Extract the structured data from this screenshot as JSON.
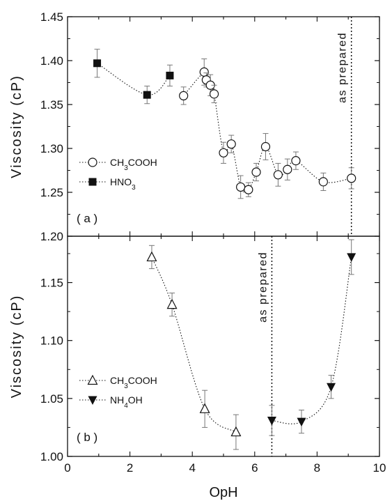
{
  "chart_data": [
    {
      "type": "scatter",
      "panel_label": "( a )",
      "ylabel": "Viscosity (cP)",
      "xlim": [
        0,
        10
      ],
      "ylim": [
        1.2,
        1.45
      ],
      "yticks": [
        "1.20",
        "1.25",
        "1.30",
        "1.35",
        "1.40",
        "1.45"
      ],
      "annotation": {
        "text": "as prepared",
        "x": 9.1
      },
      "legend_position": "middle-left",
      "series": [
        {
          "name": "CH3COOH",
          "legend_html": "CH<tspan baseline-shift=\"sub\" font-size=\"10\">3</tspan>COOH",
          "marker": "circle-open",
          "x": [
            3.72,
            4.38,
            4.45,
            4.58,
            4.7,
            5.0,
            5.25,
            5.55,
            5.8,
            6.05,
            6.35,
            6.75,
            7.05,
            7.32,
            8.2,
            9.1
          ],
          "y": [
            1.36,
            1.387,
            1.378,
            1.372,
            1.362,
            1.295,
            1.305,
            1.256,
            1.253,
            1.273,
            1.302,
            1.27,
            1.276,
            1.286,
            1.262,
            1.266
          ],
          "err": [
            0.01,
            0.015,
            0.008,
            0.012,
            0.01,
            0.012,
            0.01,
            0.013,
            0.008,
            0.01,
            0.015,
            0.013,
            0.012,
            0.01,
            0.01,
            0.012
          ]
        },
        {
          "name": "HNO3",
          "legend_html": "HNO<tspan baseline-shift=\"sub\" font-size=\"10\">3</tspan>",
          "marker": "square-filled",
          "x": [
            0.95,
            2.55,
            3.28
          ],
          "y": [
            1.397,
            1.361,
            1.383
          ],
          "err": [
            0.016,
            0.01,
            0.012
          ]
        }
      ]
    },
    {
      "type": "scatter",
      "panel_label": "( b )",
      "ylabel": "Viscosity (cP)",
      "xlabel": "OpH",
      "xlim": [
        0,
        10
      ],
      "ylim": [
        1.0,
        1.19
      ],
      "xticks": [
        "0",
        "2",
        "4",
        "6",
        "8",
        "10"
      ],
      "yticks": [
        "1.00",
        "1.05",
        "1.10",
        "1.15"
      ],
      "annotation": {
        "text": "as prepared",
        "x": 6.55
      },
      "legend_position": "bottom-left",
      "series": [
        {
          "name": "CH3COOH",
          "legend_html": "CH<tspan baseline-shift=\"sub\" font-size=\"10\">3</tspan>COOH",
          "marker": "triangle-up-open",
          "x": [
            2.7,
            3.35,
            4.4,
            5.4
          ],
          "y": [
            1.172,
            1.131,
            1.041,
            1.021
          ],
          "err": [
            0.01,
            0.01,
            0.016,
            0.015
          ]
        },
        {
          "name": "NH4OH",
          "legend_html": "NH<tspan baseline-shift=\"sub\" font-size=\"10\">4</tspan>OH",
          "marker": "triangle-down-filled",
          "x": [
            6.55,
            7.5,
            8.45,
            9.1
          ],
          "y": [
            1.031,
            1.03,
            1.06,
            1.172
          ],
          "err": [
            0.013,
            0.01,
            0.01,
            0.015
          ]
        }
      ]
    }
  ]
}
